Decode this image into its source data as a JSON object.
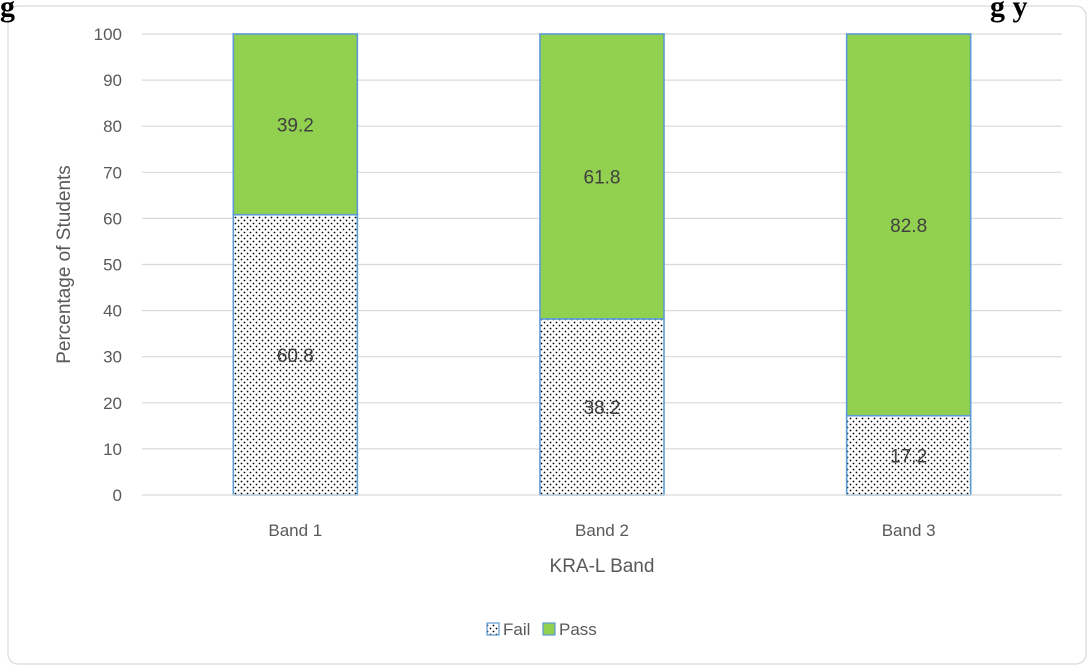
{
  "heading": {
    "left": "g",
    "right": "g      y"
  },
  "chart_data": {
    "type": "bar",
    "stacked": true,
    "categories": [
      "Band 1",
      "Band 2",
      "Band 3"
    ],
    "series": [
      {
        "name": "Fail",
        "values": [
          60.8,
          38.2,
          17.2
        ],
        "color": "#ffffff",
        "pattern": "dotted"
      },
      {
        "name": "Pass",
        "values": [
          39.2,
          61.8,
          82.8
        ],
        "color": "#92d050"
      }
    ],
    "xlabel": "KRA-L Band",
    "ylabel": "Percentage of Students",
    "ylim": [
      0,
      100
    ],
    "yticks": [
      0,
      10,
      20,
      30,
      40,
      50,
      60,
      70,
      80,
      90,
      100
    ],
    "grid": true,
    "legend_position": "bottom",
    "bar_outline_color": "#5b9bd5",
    "gridline_color": "#d9d9d9"
  }
}
